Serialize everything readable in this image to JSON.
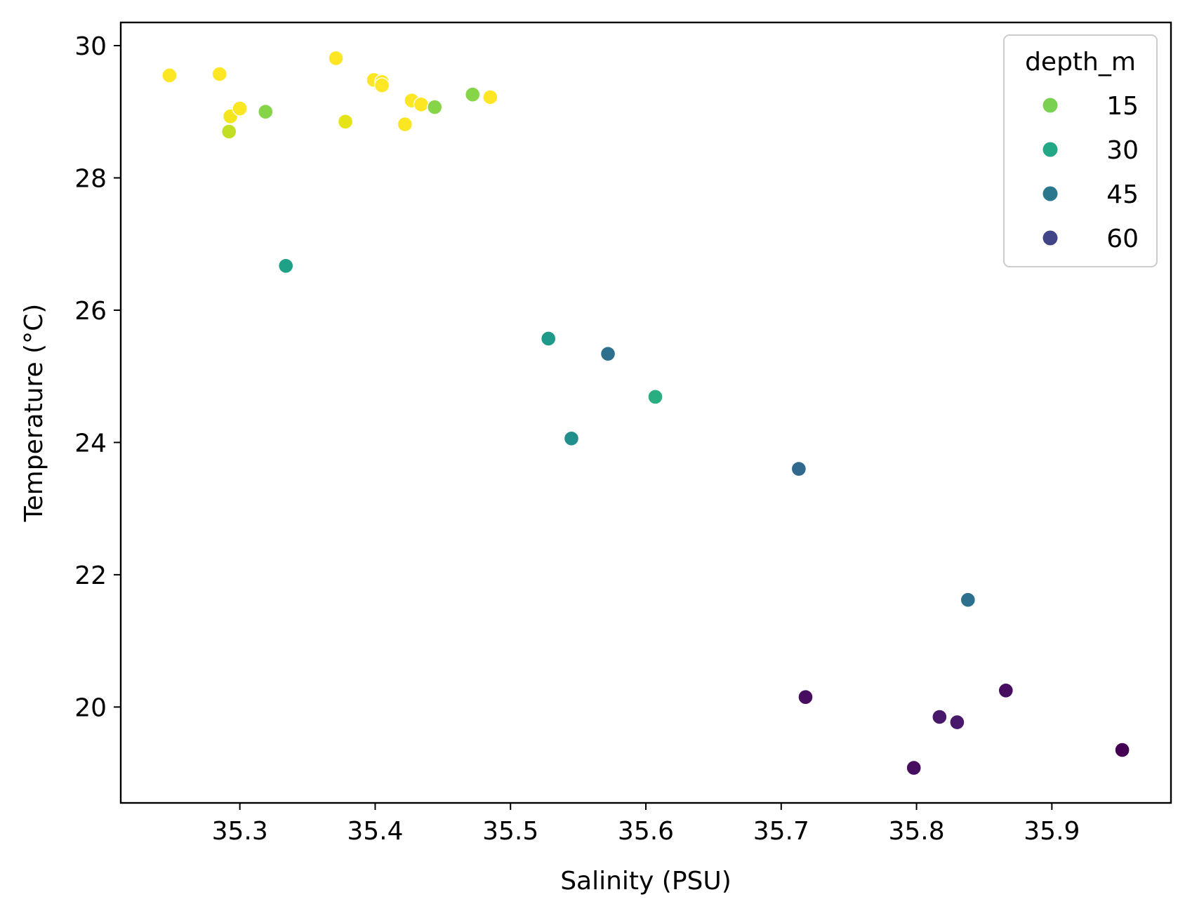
{
  "chart_data": {
    "type": "scatter",
    "title": "",
    "xlabel": "Salinity (PSU)",
    "ylabel": "Temperature (°C)",
    "xlim": [
      35.212,
      35.988
    ],
    "ylim": [
      18.55,
      30.35
    ],
    "xticks": [
      "35.3",
      "35.4",
      "35.5",
      "35.6",
      "35.7",
      "35.8",
      "35.9"
    ],
    "yticks": [
      "20",
      "22",
      "24",
      "26",
      "28",
      "30"
    ],
    "grid": false,
    "colormap": "viridis",
    "hue_range": [
      0,
      66
    ],
    "legend": {
      "title": "depth_m",
      "placement": "top-right",
      "entries": [
        {
          "label": "15",
          "value": 15,
          "color": "#7ad151"
        },
        {
          "label": "30",
          "value": 30,
          "color": "#22a884"
        },
        {
          "label": "45",
          "value": 45,
          "color": "#2a788e"
        },
        {
          "label": "60",
          "value": 60,
          "color": "#414487"
        }
      ]
    },
    "points": [
      {
        "x": 35.248,
        "y": 29.55,
        "depth": 1,
        "color": "#fde725"
      },
      {
        "x": 35.285,
        "y": 29.57,
        "depth": 2,
        "color": "#fde725"
      },
      {
        "x": 35.293,
        "y": 28.93,
        "depth": 3,
        "color": "#f3e51e"
      },
      {
        "x": 35.3,
        "y": 29.05,
        "depth": 2,
        "color": "#fae622"
      },
      {
        "x": 35.292,
        "y": 28.7,
        "depth": 8,
        "color": "#c2df23"
      },
      {
        "x": 35.319,
        "y": 29.0,
        "depth": 14,
        "color": "#86d549"
      },
      {
        "x": 35.371,
        "y": 29.81,
        "depth": 1,
        "color": "#fde725"
      },
      {
        "x": 35.378,
        "y": 28.85,
        "depth": 4,
        "color": "#e5e419"
      },
      {
        "x": 35.399,
        "y": 29.48,
        "depth": 1,
        "color": "#fde725"
      },
      {
        "x": 35.405,
        "y": 29.45,
        "depth": 1,
        "color": "#fde725"
      },
      {
        "x": 35.405,
        "y": 29.4,
        "depth": 2,
        "color": "#fde725"
      },
      {
        "x": 35.422,
        "y": 28.81,
        "depth": 2,
        "color": "#fae622"
      },
      {
        "x": 35.427,
        "y": 29.17,
        "depth": 2,
        "color": "#fde725"
      },
      {
        "x": 35.434,
        "y": 29.11,
        "depth": 2,
        "color": "#fde725"
      },
      {
        "x": 35.444,
        "y": 29.07,
        "depth": 14,
        "color": "#86d549"
      },
      {
        "x": 35.472,
        "y": 29.26,
        "depth": 14,
        "color": "#86d549"
      },
      {
        "x": 35.485,
        "y": 29.22,
        "depth": 2,
        "color": "#fde725"
      },
      {
        "x": 35.334,
        "y": 26.67,
        "depth": 33,
        "color": "#1fa187"
      },
      {
        "x": 35.528,
        "y": 25.57,
        "depth": 35,
        "color": "#1f9a8a"
      },
      {
        "x": 35.572,
        "y": 25.34,
        "depth": 46,
        "color": "#2d708e"
      },
      {
        "x": 35.607,
        "y": 24.69,
        "depth": 30,
        "color": "#28ae80"
      },
      {
        "x": 35.545,
        "y": 24.06,
        "depth": 40,
        "color": "#21908d"
      },
      {
        "x": 35.713,
        "y": 23.6,
        "depth": 48,
        "color": "#31688e"
      },
      {
        "x": 35.838,
        "y": 21.62,
        "depth": 46,
        "color": "#2d708e"
      },
      {
        "x": 35.718,
        "y": 20.15,
        "depth": 63,
        "color": "#470d60"
      },
      {
        "x": 35.866,
        "y": 20.25,
        "depth": 63,
        "color": "#470d60"
      },
      {
        "x": 35.817,
        "y": 19.85,
        "depth": 62,
        "color": "#48186a"
      },
      {
        "x": 35.83,
        "y": 19.77,
        "depth": 62,
        "color": "#48186a"
      },
      {
        "x": 35.798,
        "y": 19.08,
        "depth": 63,
        "color": "#470d60"
      },
      {
        "x": 35.952,
        "y": 19.35,
        "depth": 66,
        "color": "#440154"
      }
    ]
  }
}
